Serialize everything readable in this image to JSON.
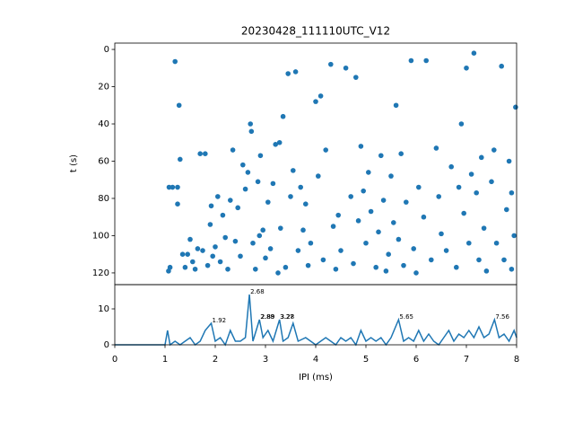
{
  "chart_data": [
    {
      "type": "scatter",
      "title": "20230428_111110UTC_V12",
      "y_label": "t (s)",
      "color": "#1f77b4",
      "xlim": [
        0,
        8
      ],
      "ylim": [
        126.3,
        -3.4
      ],
      "yticks": [
        0,
        20,
        40,
        60,
        80,
        100,
        120
      ],
      "x": [
        1.07,
        1.1,
        1.08,
        1.15,
        1.2,
        1.25,
        1.28,
        1.3,
        1.25,
        1.35,
        1.4,
        1.45,
        1.5,
        1.55,
        1.6,
        1.65,
        1.7,
        1.75,
        1.8,
        1.85,
        1.9,
        1.92,
        1.95,
        2.0,
        2.05,
        2.1,
        2.15,
        2.2,
        2.25,
        2.3,
        2.35,
        2.4,
        2.45,
        2.5,
        2.55,
        2.6,
        2.65,
        2.7,
        2.72,
        2.75,
        2.8,
        2.85,
        2.88,
        2.9,
        2.95,
        3.0,
        3.05,
        3.1,
        3.15,
        3.2,
        3.25,
        3.28,
        3.3,
        3.35,
        3.4,
        3.45,
        3.5,
        3.55,
        3.6,
        3.65,
        3.7,
        3.75,
        3.8,
        3.85,
        3.9,
        4.0,
        4.05,
        4.1,
        4.15,
        4.2,
        4.3,
        4.35,
        4.4,
        4.45,
        4.5,
        4.6,
        4.7,
        4.75,
        4.8,
        4.85,
        4.9,
        4.95,
        5.0,
        5.05,
        5.1,
        5.2,
        5.25,
        5.3,
        5.35,
        5.4,
        5.45,
        5.5,
        5.55,
        5.6,
        5.65,
        5.7,
        5.75,
        5.8,
        5.9,
        5.95,
        6.0,
        6.05,
        6.15,
        6.2,
        6.3,
        6.4,
        6.45,
        6.5,
        6.6,
        6.7,
        6.8,
        6.85,
        6.9,
        6.95,
        7.0,
        7.05,
        7.1,
        7.15,
        7.2,
        7.25,
        7.3,
        7.35,
        7.4,
        7.5,
        7.55,
        7.6,
        7.7,
        7.75,
        7.8,
        7.85,
        7.9,
        7.95,
        7.98,
        7.9
      ],
      "values": [
        119,
        117,
        74,
        74,
        6.5,
        74,
        30,
        59,
        83,
        110,
        117,
        110,
        102,
        114,
        118,
        107,
        56,
        108,
        56,
        116,
        94,
        84,
        111,
        106,
        79,
        114,
        89,
        101,
        118,
        81,
        54,
        103,
        85,
        111,
        62,
        75,
        66,
        40,
        44,
        104,
        118,
        71,
        100,
        57,
        97,
        112,
        82,
        107,
        72,
        51,
        120,
        50,
        96,
        36,
        117,
        13,
        79,
        65,
        12,
        108,
        74,
        97,
        83,
        116,
        104,
        28,
        68,
        25,
        113,
        54,
        8,
        95,
        118,
        89,
        108,
        10,
        79,
        115,
        15,
        92,
        52,
        76,
        104,
        66,
        87,
        117,
        98,
        57,
        81,
        119,
        110,
        68,
        93,
        30,
        102,
        56,
        116,
        82,
        6,
        107,
        120,
        74,
        90,
        6,
        113,
        53,
        79,
        99,
        108,
        63,
        117,
        74,
        40,
        88,
        10,
        104,
        67,
        2,
        77,
        113,
        58,
        96,
        119,
        71,
        54,
        104,
        9,
        113,
        86,
        60,
        77,
        100,
        31,
        118
      ]
    },
    {
      "type": "line",
      "x_label": "IPI (ms)",
      "color": "#1f77b4",
      "xlim": [
        0,
        8
      ],
      "xticks": [
        0,
        1,
        2,
        3,
        4,
        5,
        6,
        7,
        8
      ],
      "ylim": [
        0,
        16.75
      ],
      "yticks": [
        0,
        10
      ],
      "x": [
        0,
        1.0,
        1.05,
        1.1,
        1.2,
        1.3,
        1.4,
        1.5,
        1.6,
        1.7,
        1.8,
        1.92,
        2.0,
        2.1,
        2.2,
        2.3,
        2.4,
        2.5,
        2.6,
        2.68,
        2.75,
        2.88,
        2.95,
        3.05,
        3.15,
        3.28,
        3.35,
        3.45,
        3.55,
        3.65,
        3.8,
        3.9,
        4.0,
        4.1,
        4.2,
        4.3,
        4.4,
        4.5,
        4.6,
        4.7,
        4.8,
        4.9,
        5.0,
        5.1,
        5.2,
        5.3,
        5.4,
        5.5,
        5.65,
        5.75,
        5.85,
        5.95,
        6.05,
        6.15,
        6.25,
        6.35,
        6.45,
        6.55,
        6.65,
        6.75,
        6.85,
        6.95,
        7.05,
        7.15,
        7.25,
        7.35,
        7.45,
        7.56,
        7.65,
        7.75,
        7.85,
        7.95,
        8.0
      ],
      "values": [
        0,
        0,
        4,
        0,
        1,
        0,
        1,
        2,
        0,
        1,
        4,
        6,
        1,
        2,
        0,
        4,
        1,
        1,
        2,
        14,
        1,
        7,
        2,
        4,
        1,
        7,
        1,
        2,
        6,
        1,
        2,
        1,
        0,
        1,
        2,
        1,
        0,
        2,
        1,
        2,
        0,
        4,
        1,
        2,
        1,
        2,
        0,
        2,
        7,
        1,
        2,
        1,
        4,
        1,
        3,
        1,
        0,
        2,
        4,
        1,
        3,
        2,
        4,
        2,
        5,
        2,
        3,
        7,
        2,
        3,
        1,
        4,
        2
      ],
      "annotations": [
        {
          "text": "1.92",
          "x": 1.92,
          "y": 6
        },
        {
          "text": "2.68",
          "x": 2.68,
          "y": 14
        },
        {
          "text": "2.89",
          "x": 2.89,
          "y": 7
        },
        {
          "text": "2.88",
          "x": 2.88,
          "y": 7
        },
        {
          "text": "3.28",
          "x": 3.28,
          "y": 7
        },
        {
          "text": "3.27",
          "x": 3.27,
          "y": 7
        },
        {
          "text": "5.65",
          "x": 5.65,
          "y": 7
        },
        {
          "text": "7.56",
          "x": 7.56,
          "y": 7
        }
      ]
    }
  ]
}
